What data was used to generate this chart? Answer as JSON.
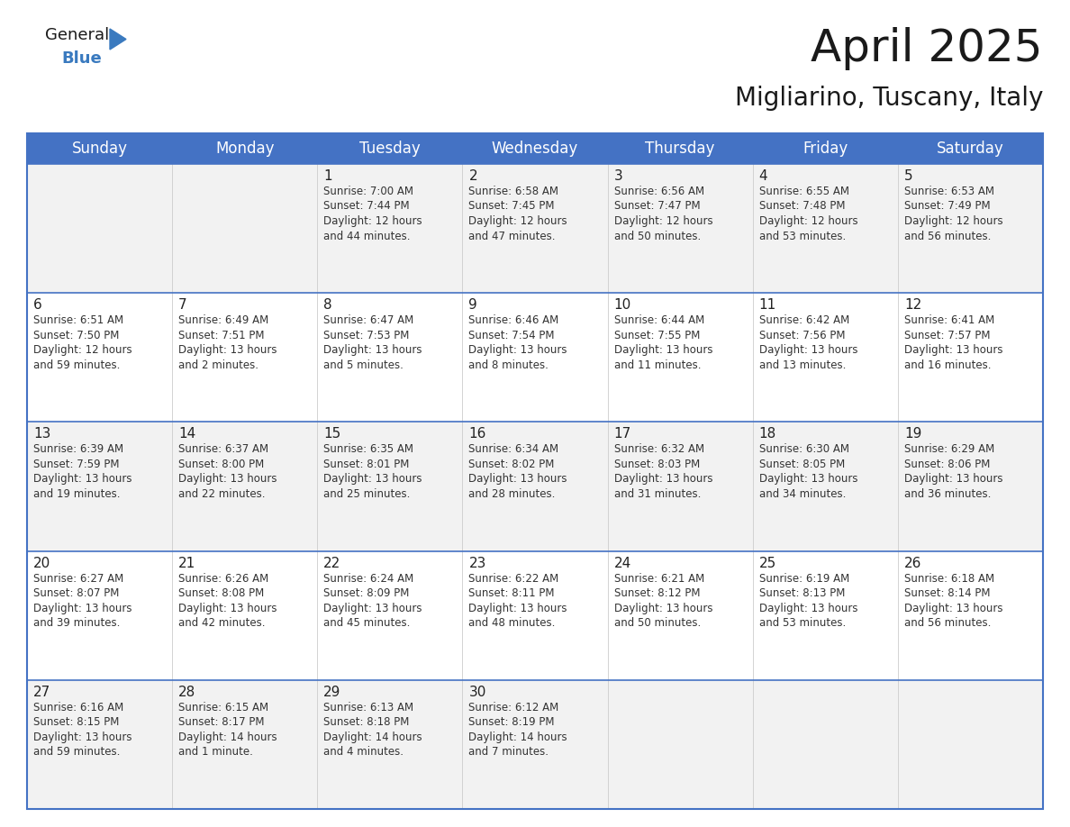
{
  "title": "April 2025",
  "subtitle": "Migliarino, Tuscany, Italy",
  "header_bg": "#4472C4",
  "header_text": "#FFFFFF",
  "cell_bg_odd": "#F2F2F2",
  "cell_bg_even": "#FFFFFF",
  "border_color": "#4472C4",
  "row_line_color": "#4472C4",
  "col_line_color": "#CCCCCC",
  "day_headers": [
    "Sunday",
    "Monday",
    "Tuesday",
    "Wednesday",
    "Thursday",
    "Friday",
    "Saturday"
  ],
  "days": [
    {
      "date": 1,
      "col": 2,
      "row": 0,
      "sunrise": "7:00 AM",
      "sunset": "7:44 PM",
      "daylight": "12 hours\nand 44 minutes."
    },
    {
      "date": 2,
      "col": 3,
      "row": 0,
      "sunrise": "6:58 AM",
      "sunset": "7:45 PM",
      "daylight": "12 hours\nand 47 minutes."
    },
    {
      "date": 3,
      "col": 4,
      "row": 0,
      "sunrise": "6:56 AM",
      "sunset": "7:47 PM",
      "daylight": "12 hours\nand 50 minutes."
    },
    {
      "date": 4,
      "col": 5,
      "row": 0,
      "sunrise": "6:55 AM",
      "sunset": "7:48 PM",
      "daylight": "12 hours\nand 53 minutes."
    },
    {
      "date": 5,
      "col": 6,
      "row": 0,
      "sunrise": "6:53 AM",
      "sunset": "7:49 PM",
      "daylight": "12 hours\nand 56 minutes."
    },
    {
      "date": 6,
      "col": 0,
      "row": 1,
      "sunrise": "6:51 AM",
      "sunset": "7:50 PM",
      "daylight": "12 hours\nand 59 minutes."
    },
    {
      "date": 7,
      "col": 1,
      "row": 1,
      "sunrise": "6:49 AM",
      "sunset": "7:51 PM",
      "daylight": "13 hours\nand 2 minutes."
    },
    {
      "date": 8,
      "col": 2,
      "row": 1,
      "sunrise": "6:47 AM",
      "sunset": "7:53 PM",
      "daylight": "13 hours\nand 5 minutes."
    },
    {
      "date": 9,
      "col": 3,
      "row": 1,
      "sunrise": "6:46 AM",
      "sunset": "7:54 PM",
      "daylight": "13 hours\nand 8 minutes."
    },
    {
      "date": 10,
      "col": 4,
      "row": 1,
      "sunrise": "6:44 AM",
      "sunset": "7:55 PM",
      "daylight": "13 hours\nand 11 minutes."
    },
    {
      "date": 11,
      "col": 5,
      "row": 1,
      "sunrise": "6:42 AM",
      "sunset": "7:56 PM",
      "daylight": "13 hours\nand 13 minutes."
    },
    {
      "date": 12,
      "col": 6,
      "row": 1,
      "sunrise": "6:41 AM",
      "sunset": "7:57 PM",
      "daylight": "13 hours\nand 16 minutes."
    },
    {
      "date": 13,
      "col": 0,
      "row": 2,
      "sunrise": "6:39 AM",
      "sunset": "7:59 PM",
      "daylight": "13 hours\nand 19 minutes."
    },
    {
      "date": 14,
      "col": 1,
      "row": 2,
      "sunrise": "6:37 AM",
      "sunset": "8:00 PM",
      "daylight": "13 hours\nand 22 minutes."
    },
    {
      "date": 15,
      "col": 2,
      "row": 2,
      "sunrise": "6:35 AM",
      "sunset": "8:01 PM",
      "daylight": "13 hours\nand 25 minutes."
    },
    {
      "date": 16,
      "col": 3,
      "row": 2,
      "sunrise": "6:34 AM",
      "sunset": "8:02 PM",
      "daylight": "13 hours\nand 28 minutes."
    },
    {
      "date": 17,
      "col": 4,
      "row": 2,
      "sunrise": "6:32 AM",
      "sunset": "8:03 PM",
      "daylight": "13 hours\nand 31 minutes."
    },
    {
      "date": 18,
      "col": 5,
      "row": 2,
      "sunrise": "6:30 AM",
      "sunset": "8:05 PM",
      "daylight": "13 hours\nand 34 minutes."
    },
    {
      "date": 19,
      "col": 6,
      "row": 2,
      "sunrise": "6:29 AM",
      "sunset": "8:06 PM",
      "daylight": "13 hours\nand 36 minutes."
    },
    {
      "date": 20,
      "col": 0,
      "row": 3,
      "sunrise": "6:27 AM",
      "sunset": "8:07 PM",
      "daylight": "13 hours\nand 39 minutes."
    },
    {
      "date": 21,
      "col": 1,
      "row": 3,
      "sunrise": "6:26 AM",
      "sunset": "8:08 PM",
      "daylight": "13 hours\nand 42 minutes."
    },
    {
      "date": 22,
      "col": 2,
      "row": 3,
      "sunrise": "6:24 AM",
      "sunset": "8:09 PM",
      "daylight": "13 hours\nand 45 minutes."
    },
    {
      "date": 23,
      "col": 3,
      "row": 3,
      "sunrise": "6:22 AM",
      "sunset": "8:11 PM",
      "daylight": "13 hours\nand 48 minutes."
    },
    {
      "date": 24,
      "col": 4,
      "row": 3,
      "sunrise": "6:21 AM",
      "sunset": "8:12 PM",
      "daylight": "13 hours\nand 50 minutes."
    },
    {
      "date": 25,
      "col": 5,
      "row": 3,
      "sunrise": "6:19 AM",
      "sunset": "8:13 PM",
      "daylight": "13 hours\nand 53 minutes."
    },
    {
      "date": 26,
      "col": 6,
      "row": 3,
      "sunrise": "6:18 AM",
      "sunset": "8:14 PM",
      "daylight": "13 hours\nand 56 minutes."
    },
    {
      "date": 27,
      "col": 0,
      "row": 4,
      "sunrise": "6:16 AM",
      "sunset": "8:15 PM",
      "daylight": "13 hours\nand 59 minutes."
    },
    {
      "date": 28,
      "col": 1,
      "row": 4,
      "sunrise": "6:15 AM",
      "sunset": "8:17 PM",
      "daylight": "14 hours\nand 1 minute."
    },
    {
      "date": 29,
      "col": 2,
      "row": 4,
      "sunrise": "6:13 AM",
      "sunset": "8:18 PM",
      "daylight": "14 hours\nand 4 minutes."
    },
    {
      "date": 30,
      "col": 3,
      "row": 4,
      "sunrise": "6:12 AM",
      "sunset": "8:19 PM",
      "daylight": "14 hours\nand 7 minutes."
    }
  ],
  "num_rows": 5,
  "num_cols": 7,
  "logo_color_general": "#1a1a1a",
  "logo_color_blue": "#3a7abf",
  "title_color": "#1a1a1a",
  "subtitle_color": "#1a1a1a"
}
